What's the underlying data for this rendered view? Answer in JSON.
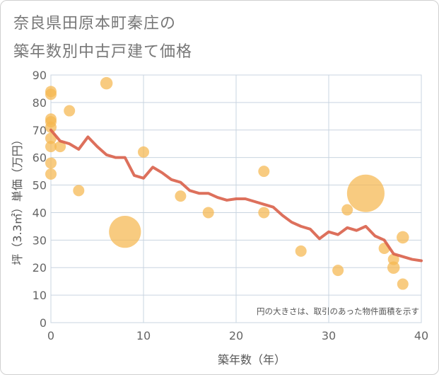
{
  "chart_data": {
    "type": "scatter",
    "title_line1": "奈良県田原本町秦庄の",
    "title_line2": "築年数別中古戸建て価格",
    "xlabel": "築年数（年）",
    "ylabel": "坪（3.3㎡）単価（万円）",
    "xlim": [
      0,
      40
    ],
    "ylim": [
      0,
      90
    ],
    "x_ticks": [
      0,
      10,
      20,
      30,
      40
    ],
    "y_ticks": [
      0,
      10,
      20,
      30,
      40,
      50,
      60,
      70,
      80,
      90
    ],
    "note": "円の大きさは、取引のあった物件面積を示す",
    "colors": {
      "bubble": "#f5b74f",
      "line": "#d9604a",
      "grid": "#c9d4e0"
    },
    "points": [
      {
        "x": 0,
        "y": 84,
        "size": 1
      },
      {
        "x": 0,
        "y": 83,
        "size": 1
      },
      {
        "x": 0,
        "y": 74,
        "size": 1
      },
      {
        "x": 0,
        "y": 73,
        "size": 1
      },
      {
        "x": 0,
        "y": 71,
        "size": 1
      },
      {
        "x": 0,
        "y": 67,
        "size": 1
      },
      {
        "x": 0,
        "y": 64,
        "size": 1
      },
      {
        "x": 0,
        "y": 58,
        "size": 1
      },
      {
        "x": 0,
        "y": 54,
        "size": 1
      },
      {
        "x": 1,
        "y": 64,
        "size": 1
      },
      {
        "x": 2,
        "y": 77,
        "size": 1
      },
      {
        "x": 3,
        "y": 48,
        "size": 1
      },
      {
        "x": 6,
        "y": 87,
        "size": 1.2
      },
      {
        "x": 8,
        "y": 33,
        "size": 8
      },
      {
        "x": 10,
        "y": 62,
        "size": 1
      },
      {
        "x": 14,
        "y": 46,
        "size": 1
      },
      {
        "x": 17,
        "y": 40,
        "size": 1
      },
      {
        "x": 23,
        "y": 55,
        "size": 1
      },
      {
        "x": 23,
        "y": 40,
        "size": 1
      },
      {
        "x": 27,
        "y": 26,
        "size": 1
      },
      {
        "x": 31,
        "y": 19,
        "size": 1
      },
      {
        "x": 32,
        "y": 41,
        "size": 1
      },
      {
        "x": 34,
        "y": 47,
        "size": 11
      },
      {
        "x": 36,
        "y": 27,
        "size": 1
      },
      {
        "x": 37,
        "y": 23,
        "size": 1
      },
      {
        "x": 37,
        "y": 20,
        "size": 1.2
      },
      {
        "x": 38,
        "y": 31,
        "size": 1.2
      },
      {
        "x": 38,
        "y": 14,
        "size": 1
      }
    ],
    "trend": {
      "x": [
        0,
        1,
        2,
        3,
        4,
        5,
        6,
        7,
        8,
        9,
        10,
        11,
        12,
        13,
        14,
        15,
        16,
        17,
        18,
        19,
        20,
        21,
        22,
        23,
        24,
        25,
        26,
        27,
        28,
        29,
        30,
        31,
        32,
        33,
        34,
        35,
        36,
        37,
        38,
        39,
        40
      ],
      "y": [
        70,
        66,
        65,
        63,
        67.5,
        64,
        61,
        60,
        60,
        53.5,
        52.5,
        56.5,
        54.5,
        52,
        51,
        48,
        47,
        47,
        45.5,
        44.5,
        45,
        45,
        44,
        43,
        42,
        39,
        36.5,
        35,
        34,
        30.5,
        33,
        32,
        34.5,
        33.5,
        35,
        31.5,
        30,
        25,
        24,
        23,
        22.5
      ]
    }
  }
}
